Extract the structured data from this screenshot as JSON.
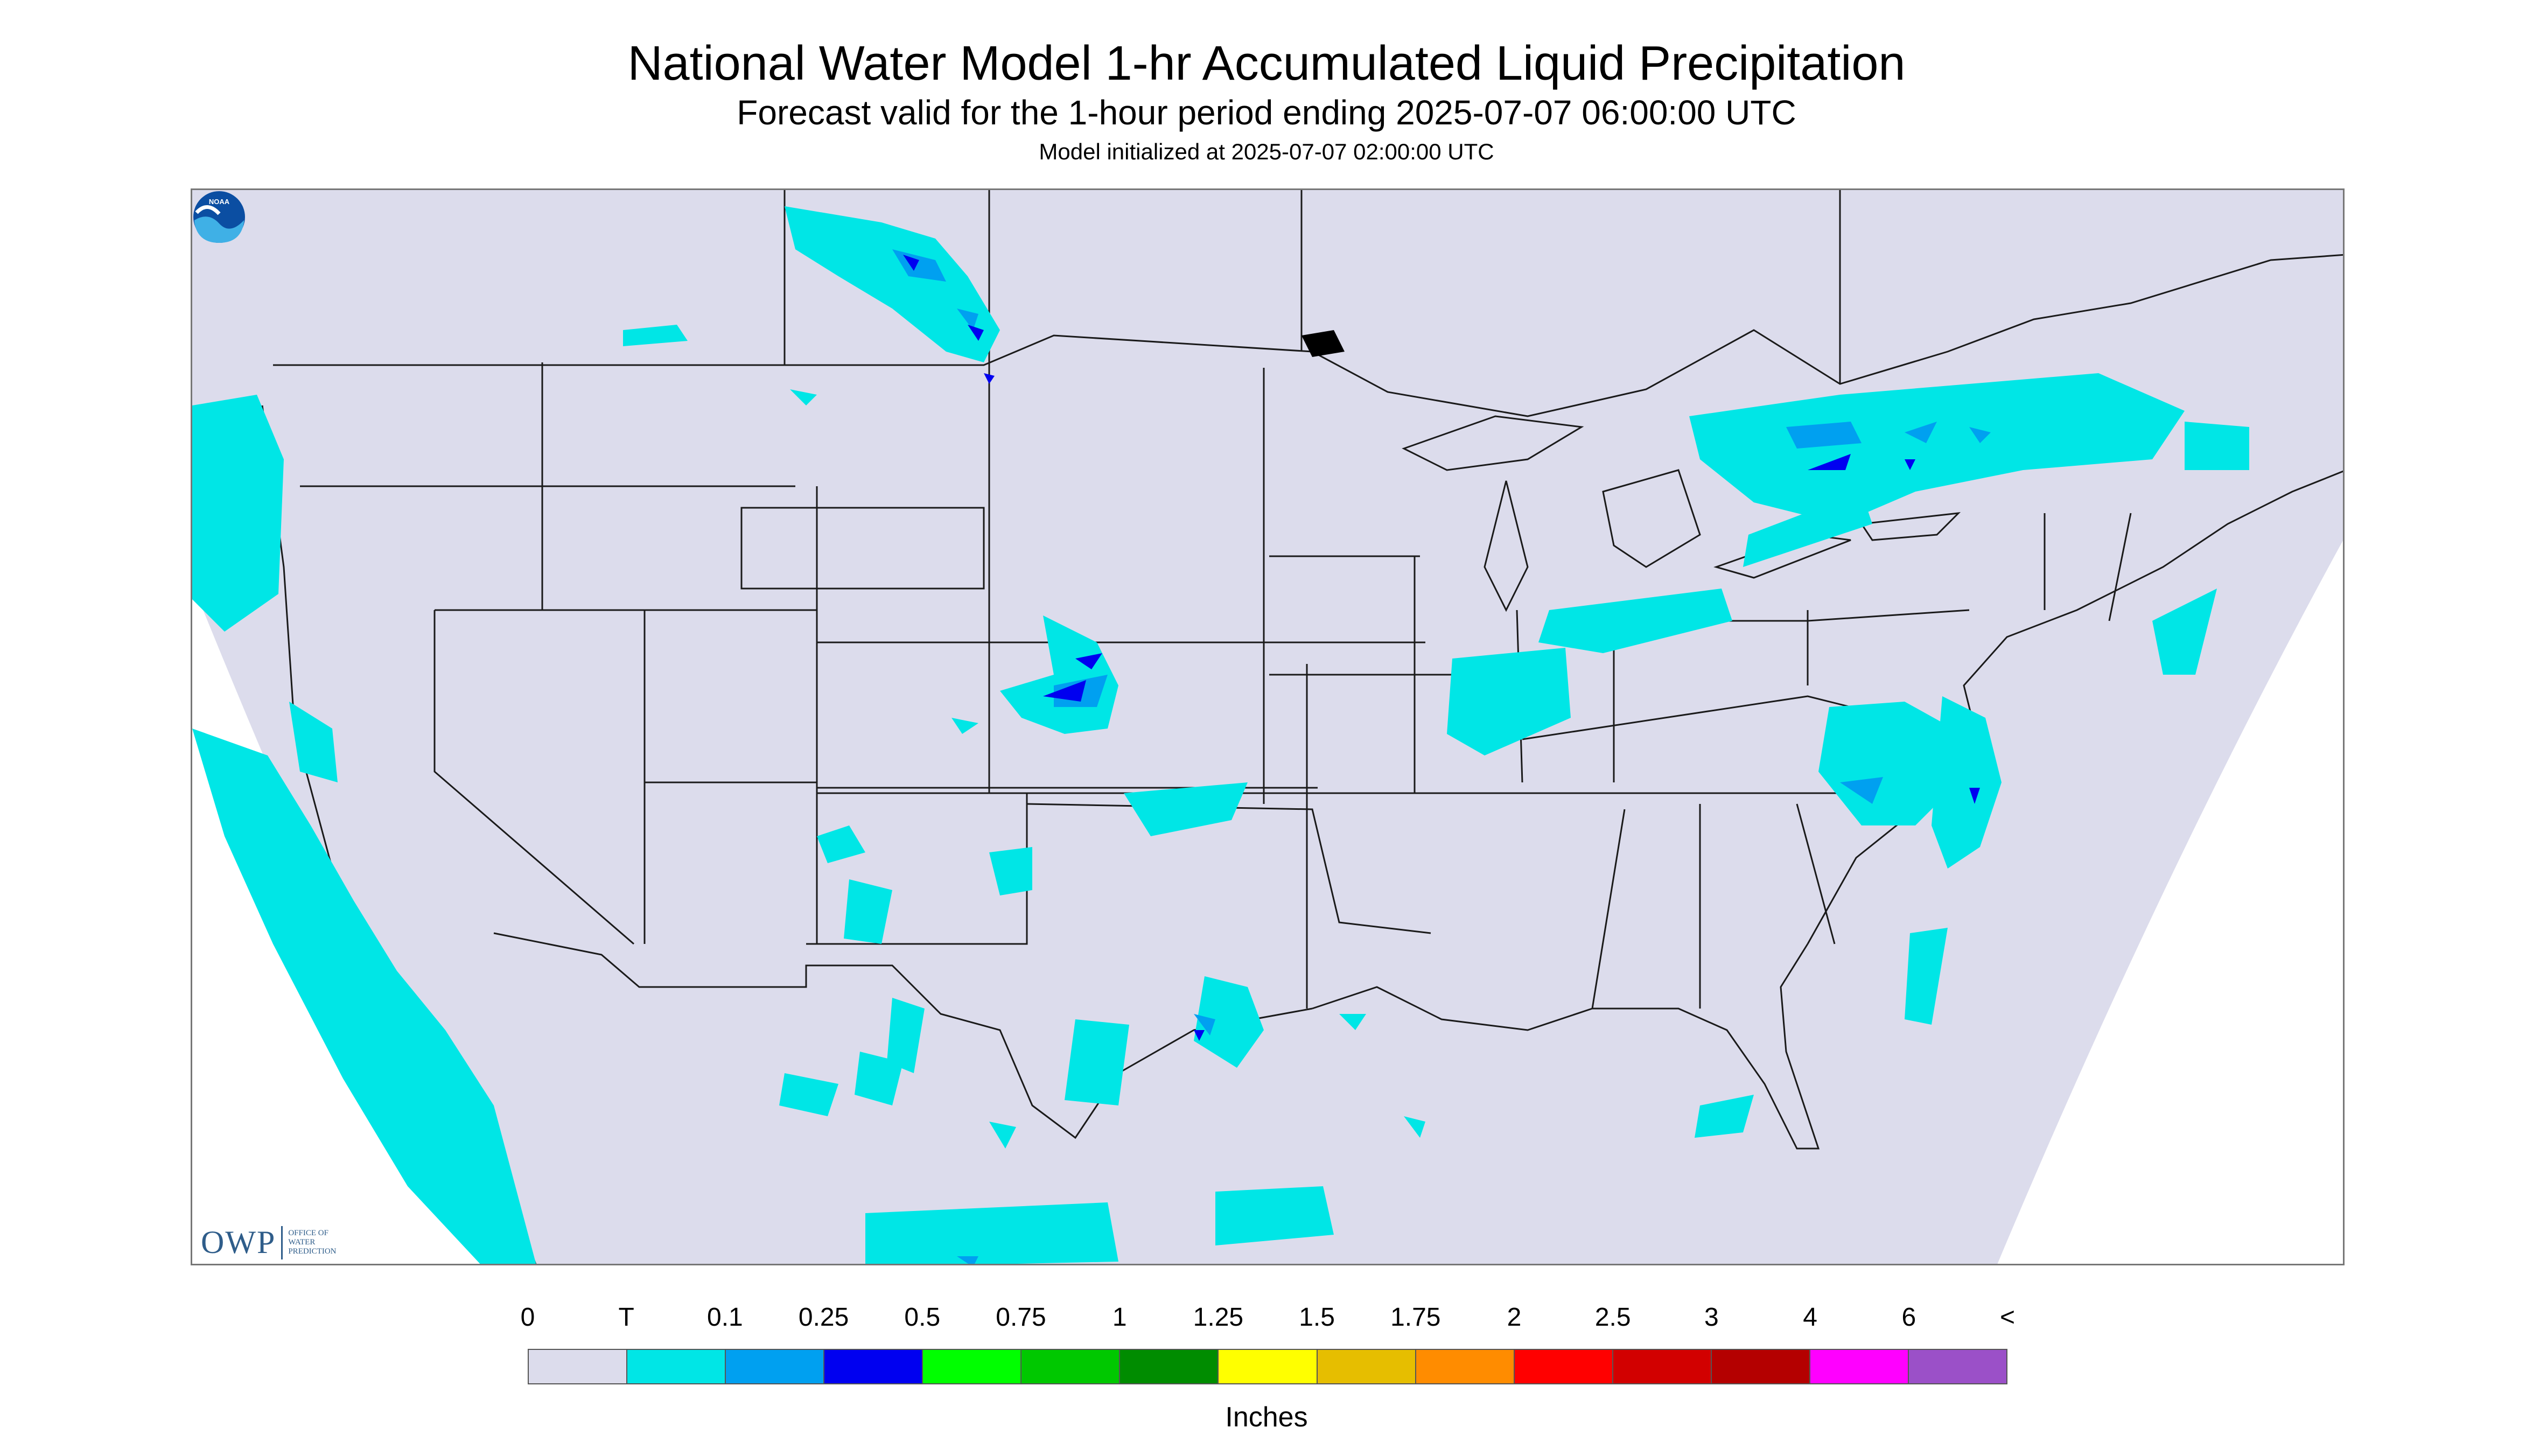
{
  "title": "National Water Model 1-hr Accumulated Liquid Precipitation",
  "subtitle": "Forecast valid for the 1-hour period ending 2025-07-07 06:00:00 UTC",
  "model_init": "Model initialized at 2025-07-07 02:00:00 UTC",
  "logo_owp": {
    "letters": "OWP",
    "lines": [
      "OFFICE OF",
      "WATER",
      "PREDICTION"
    ]
  },
  "logo_noaa": {
    "text": "NOAA",
    "icon": "noaa-logo-icon"
  },
  "legend": {
    "ticks": [
      "0",
      "T",
      "0.1",
      "0.25",
      "0.5",
      "0.75",
      "1",
      "1.25",
      "1.5",
      "1.75",
      "2",
      "2.5",
      "3",
      "4",
      "6",
      "<"
    ],
    "colors": [
      "#dcdcec",
      "#00e6e6",
      "#00a0f0",
      "#0000f0",
      "#00ff00",
      "#00c800",
      "#008c00",
      "#ffff00",
      "#e6be00",
      "#ff8c00",
      "#ff0000",
      "#d20000",
      "#b40000",
      "#ff00ff",
      "#9b50c8"
    ],
    "units": "Inches"
  },
  "map_colors": {
    "land_background": "#dcdcec",
    "trace": "#00e6e6",
    "light": "#00a0f0",
    "moderate": "#0000f0",
    "outside": "#ffffff",
    "borders": "#1a1a1a"
  }
}
